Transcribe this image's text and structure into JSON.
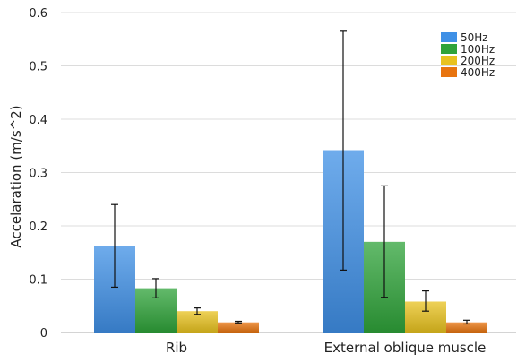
{
  "chart_data": {
    "type": "bar",
    "title": "",
    "xlabel": "",
    "ylabel": "Accelaration (m/s^2)",
    "ylim": [
      0,
      0.6
    ],
    "yticks": [
      "0",
      "0.1",
      "0.2",
      "0.3",
      "0.4",
      "0.5",
      "0.6"
    ],
    "grid": true,
    "legend_position": "top-right",
    "categories": [
      "Rib",
      "External oblique muscle"
    ],
    "series": [
      {
        "name": "50Hz",
        "color": "#3f90e6",
        "values": [
          0.163,
          0.342
        ],
        "error": [
          [
            0.085,
            0.24
          ],
          [
            0.117,
            0.565
          ]
        ]
      },
      {
        "name": "100Hz",
        "color": "#2fa33a",
        "values": [
          0.083,
          0.17
        ],
        "error": [
          [
            0.065,
            0.101
          ],
          [
            0.066,
            0.275
          ]
        ]
      },
      {
        "name": "200Hz",
        "color": "#e8c21f",
        "values": [
          0.04,
          0.058
        ],
        "error": [
          [
            0.034,
            0.046
          ],
          [
            0.04,
            0.078
          ]
        ]
      },
      {
        "name": "400Hz",
        "color": "#e8740f",
        "values": [
          0.019,
          0.019
        ],
        "error": [
          [
            0.018,
            0.021
          ],
          [
            0.016,
            0.023
          ]
        ]
      }
    ]
  }
}
